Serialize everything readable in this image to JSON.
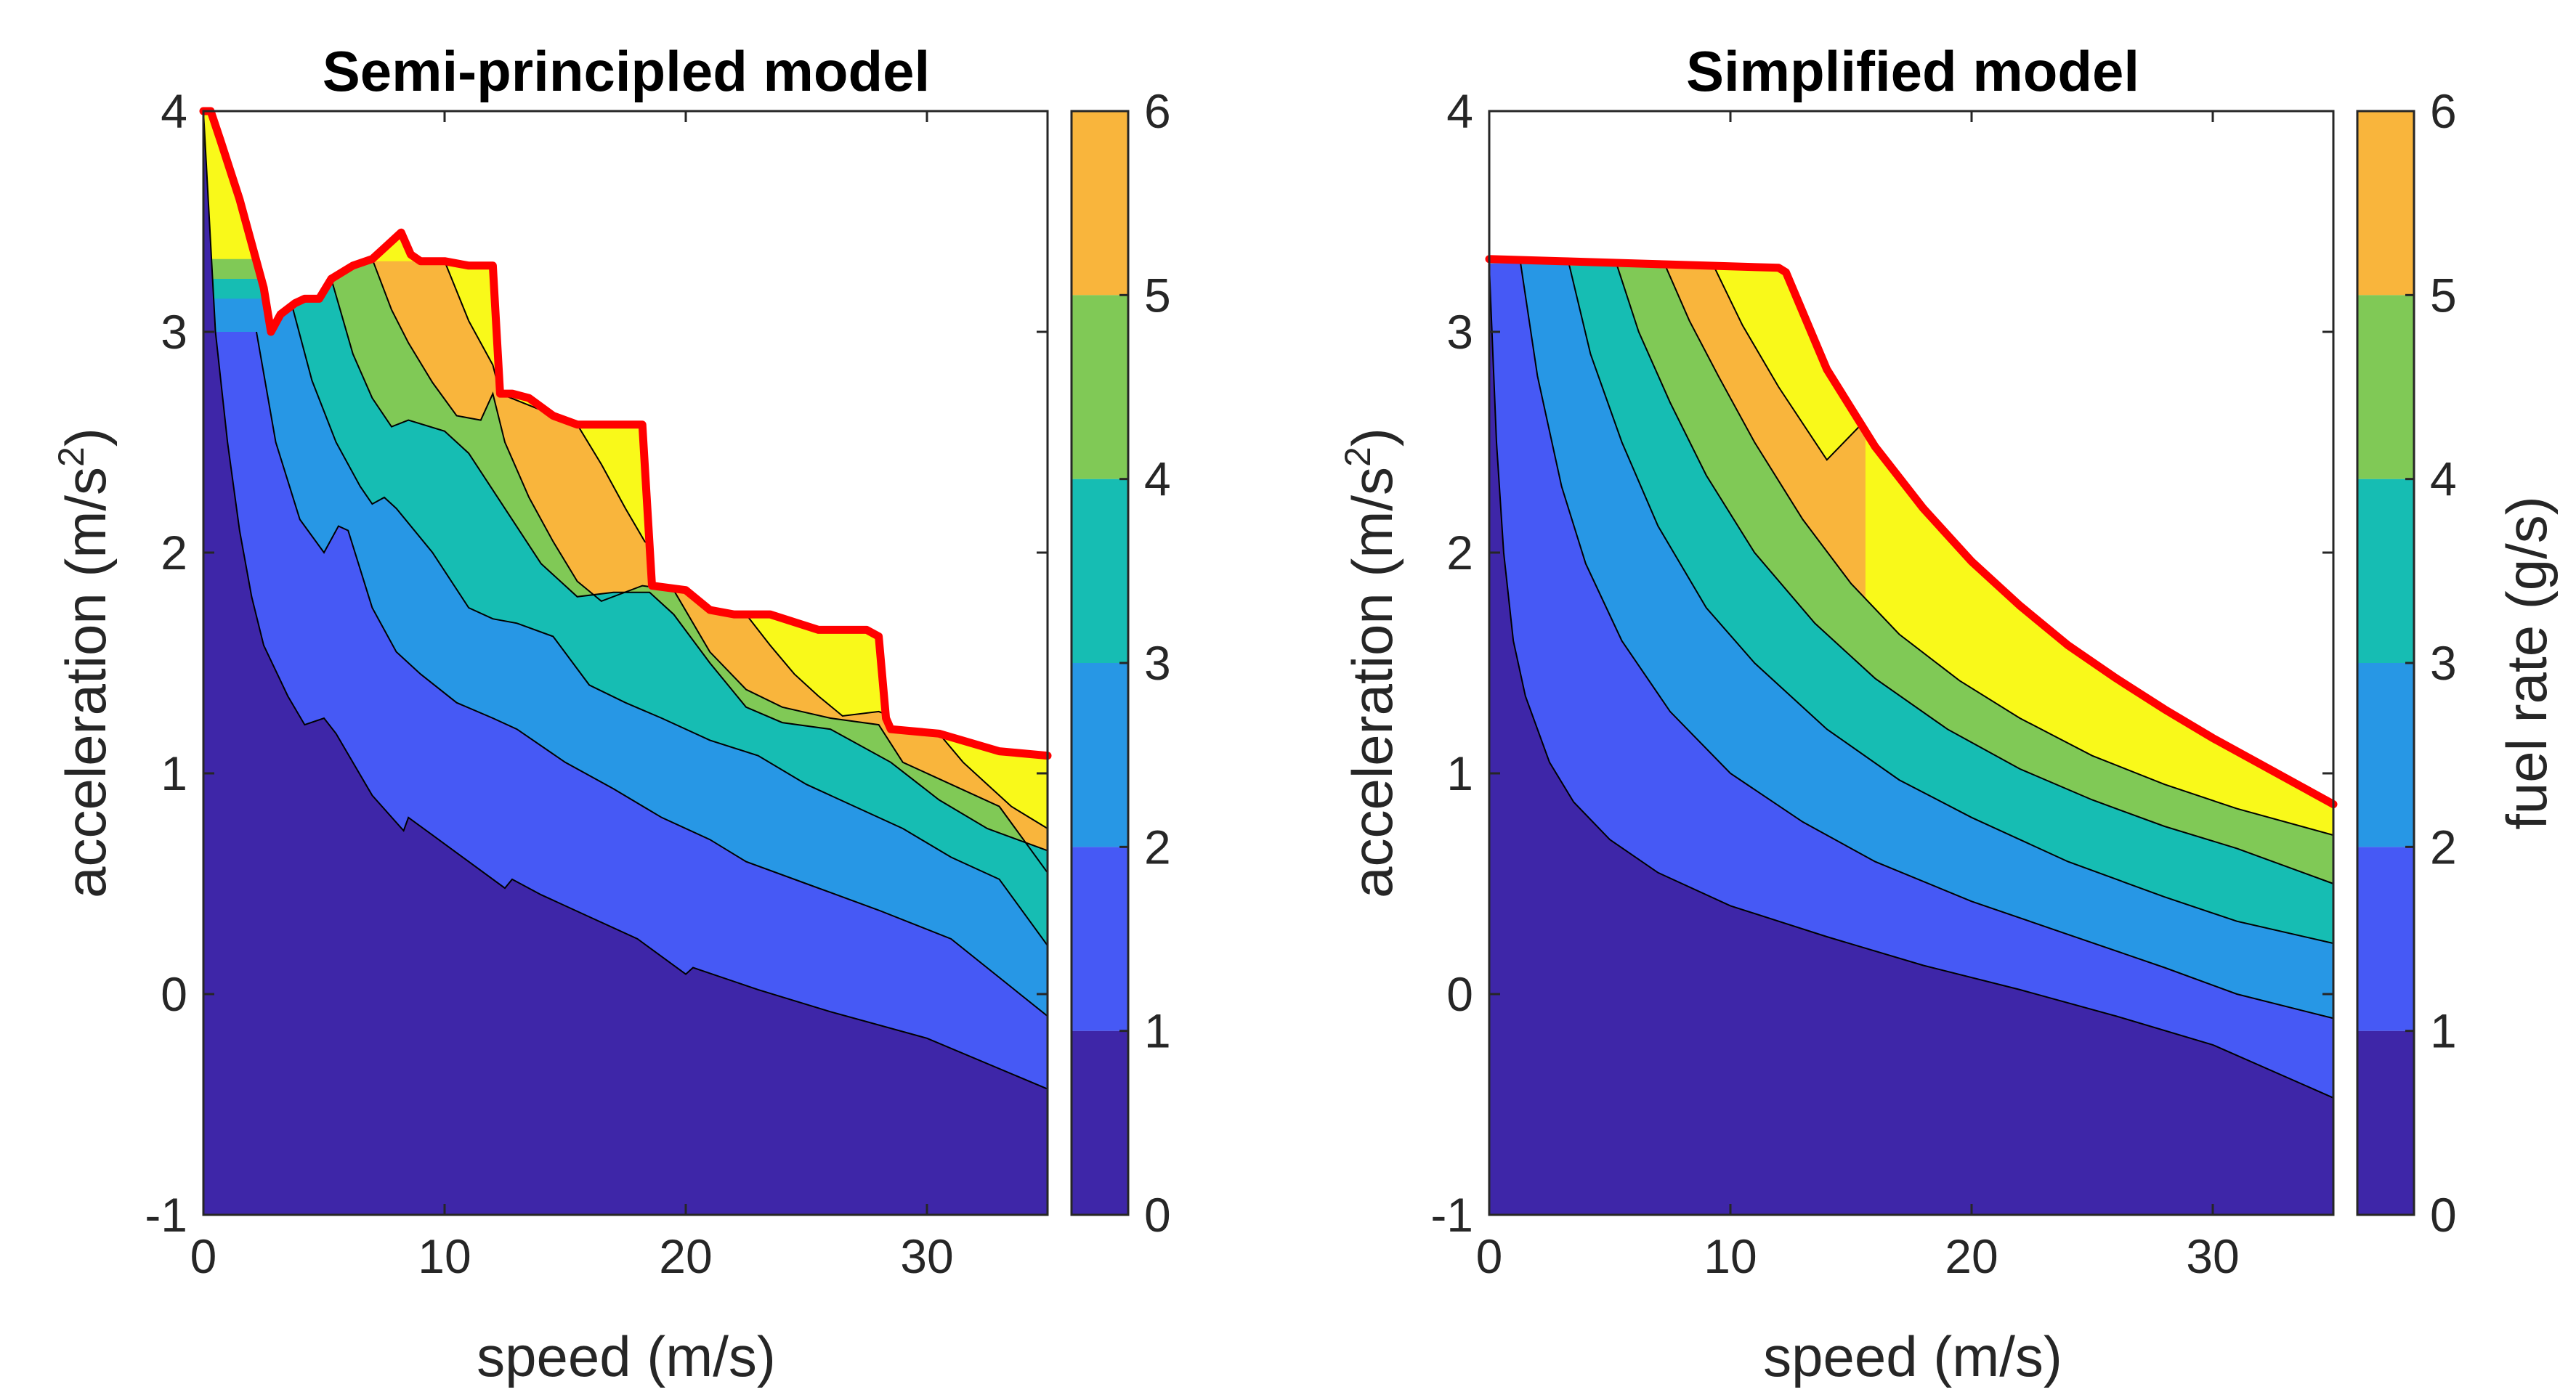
{
  "chart_data": [
    {
      "type": "contourf",
      "title": "Semi-principled model",
      "xlabel": "speed (m/s)",
      "ylabel_main": "acceleration (m/s",
      "ylabel_sup": "2",
      "ylabel_end": ")",
      "xlim": [
        0,
        35
      ],
      "ylim": [
        -1,
        4
      ],
      "xticks": [
        0,
        10,
        20,
        30
      ],
      "yticks": [
        -1,
        0,
        1,
        2,
        3,
        4
      ],
      "colorbar": {
        "range": [
          0,
          6
        ],
        "ticks": [
          0,
          1,
          2,
          3,
          4,
          5,
          6
        ],
        "label": ""
      },
      "levels": [
        0,
        1,
        2,
        3,
        4,
        5,
        6
      ],
      "level_colors": [
        "#3E26A8",
        "#4659F5",
        "#2797E5",
        "#16BDB3",
        "#80C956",
        "#F9B53C",
        "#F9F91A"
      ],
      "max_accel_boundary_color": "#FF0000",
      "max_accel_boundary": [
        [
          0,
          4.0
        ],
        [
          0.3,
          4.0
        ],
        [
          0.7,
          3.87
        ],
        [
          1.5,
          3.6
        ],
        [
          2.5,
          3.2
        ],
        [
          2.8,
          3.0
        ],
        [
          3.2,
          3.08
        ],
        [
          3.8,
          3.13
        ],
        [
          4.2,
          3.15
        ],
        [
          4.8,
          3.15
        ],
        [
          5.3,
          3.24
        ],
        [
          6.2,
          3.3
        ],
        [
          7.0,
          3.33
        ],
        [
          7.5,
          3.38
        ],
        [
          8.2,
          3.45
        ],
        [
          8.6,
          3.35
        ],
        [
          9.0,
          3.32
        ],
        [
          10.0,
          3.32
        ],
        [
          11.0,
          3.3
        ],
        [
          12.0,
          3.3
        ],
        [
          12.3,
          2.72
        ],
        [
          12.8,
          2.72
        ],
        [
          13.5,
          2.7
        ],
        [
          14.5,
          2.62
        ],
        [
          15.5,
          2.58
        ],
        [
          17.0,
          2.58
        ],
        [
          18.2,
          2.58
        ],
        [
          18.6,
          1.85
        ],
        [
          20.0,
          1.83
        ],
        [
          21.0,
          1.74
        ],
        [
          22.0,
          1.72
        ],
        [
          23.5,
          1.72
        ],
        [
          25.5,
          1.65
        ],
        [
          27.5,
          1.65
        ],
        [
          28.0,
          1.62
        ],
        [
          28.3,
          1.25
        ],
        [
          28.5,
          1.2
        ],
        [
          30.5,
          1.18
        ],
        [
          33.0,
          1.1
        ],
        [
          35.0,
          1.08
        ]
      ],
      "contours": [
        {
          "level": 1,
          "points": [
            [
              0,
              4.0
            ],
            [
              0.5,
              3.0
            ],
            [
              1.0,
              2.5
            ],
            [
              1.5,
              2.1
            ],
            [
              2.0,
              1.8
            ],
            [
              2.5,
              1.58
            ],
            [
              3.5,
              1.35
            ],
            [
              4.2,
              1.22
            ],
            [
              5.0,
              1.25
            ],
            [
              5.5,
              1.18
            ],
            [
              7.0,
              0.9
            ],
            [
              8.3,
              0.74
            ],
            [
              8.5,
              0.8
            ],
            [
              9.5,
              0.72
            ],
            [
              11.0,
              0.6
            ],
            [
              12.5,
              0.48
            ],
            [
              12.8,
              0.52
            ],
            [
              14.0,
              0.45
            ],
            [
              16.0,
              0.35
            ],
            [
              18.0,
              0.25
            ],
            [
              20.0,
              0.09
            ],
            [
              20.3,
              0.12
            ],
            [
              23.0,
              0.02
            ],
            [
              26.0,
              -0.08
            ],
            [
              30.0,
              -0.2
            ],
            [
              35.0,
              -0.43
            ]
          ]
        },
        {
          "level": 2,
          "points": [
            [
              2.2,
              3.0
            ],
            [
              3.0,
              2.5
            ],
            [
              4.0,
              2.15
            ],
            [
              5.0,
              2.0
            ],
            [
              5.6,
              2.12
            ],
            [
              6.0,
              2.1
            ],
            [
              7.0,
              1.75
            ],
            [
              8.0,
              1.55
            ],
            [
              9.0,
              1.45
            ],
            [
              10.5,
              1.32
            ],
            [
              12.0,
              1.25
            ],
            [
              13.0,
              1.2
            ],
            [
              15.0,
              1.05
            ],
            [
              17.0,
              0.93
            ],
            [
              19.0,
              0.8
            ],
            [
              21.0,
              0.7
            ],
            [
              22.5,
              0.6
            ],
            [
              25.0,
              0.5
            ],
            [
              28.0,
              0.38
            ],
            [
              31.0,
              0.25
            ],
            [
              35.0,
              -0.1
            ]
          ]
        },
        {
          "level": 3,
          "points": [
            [
              3.6,
              3.15
            ],
            [
              4.5,
              2.78
            ],
            [
              5.5,
              2.5
            ],
            [
              6.5,
              2.3
            ],
            [
              7.0,
              2.22
            ],
            [
              7.5,
              2.25
            ],
            [
              8.0,
              2.2
            ],
            [
              9.5,
              2.0
            ],
            [
              11.0,
              1.75
            ],
            [
              12.0,
              1.7
            ],
            [
              13.0,
              1.68
            ],
            [
              14.5,
              1.62
            ],
            [
              16.0,
              1.4
            ],
            [
              17.5,
              1.32
            ],
            [
              19.0,
              1.25
            ],
            [
              21.0,
              1.15
            ],
            [
              23.0,
              1.08
            ],
            [
              25.0,
              0.95
            ],
            [
              27.0,
              0.85
            ],
            [
              29.0,
              0.75
            ],
            [
              31.0,
              0.62
            ],
            [
              33.0,
              0.52
            ],
            [
              35.0,
              0.22
            ]
          ]
        },
        {
          "level": 4,
          "points": [
            [
              5.3,
              3.24
            ],
            [
              6.2,
              2.9
            ],
            [
              7.0,
              2.7
            ],
            [
              7.8,
              2.57
            ],
            [
              8.5,
              2.6
            ],
            [
              10.0,
              2.55
            ],
            [
              11.0,
              2.45
            ],
            [
              12.5,
              2.2
            ],
            [
              14.0,
              1.95
            ],
            [
              15.5,
              1.8
            ],
            [
              17.0,
              1.82
            ],
            [
              18.5,
              1.82
            ],
            [
              19.5,
              1.72
            ],
            [
              21.0,
              1.5
            ],
            [
              22.5,
              1.3
            ],
            [
              24.0,
              1.23
            ],
            [
              26.0,
              1.2
            ],
            [
              28.5,
              1.05
            ],
            [
              30.5,
              0.88
            ],
            [
              32.5,
              0.75
            ],
            [
              35.0,
              0.65
            ]
          ]
        },
        {
          "level": 5,
          "points": [
            [
              7.0,
              3.33
            ],
            [
              7.8,
              3.1
            ],
            [
              8.5,
              2.95
            ],
            [
              9.5,
              2.77
            ],
            [
              10.5,
              2.62
            ],
            [
              11.5,
              2.6
            ],
            [
              12.0,
              2.72
            ],
            [
              12.5,
              2.5
            ],
            [
              13.5,
              2.25
            ],
            [
              14.5,
              2.05
            ],
            [
              15.5,
              1.87
            ],
            [
              16.5,
              1.78
            ],
            [
              18.2,
              1.85
            ],
            [
              19.5,
              1.83
            ],
            [
              21.0,
              1.55
            ],
            [
              22.5,
              1.38
            ],
            [
              24.0,
              1.3
            ],
            [
              26.0,
              1.25
            ],
            [
              28.0,
              1.22
            ],
            [
              29.0,
              1.05
            ],
            [
              31.0,
              0.95
            ],
            [
              33.0,
              0.85
            ],
            [
              35.0,
              0.55
            ]
          ]
        },
        {
          "level": 6,
          "points": [
            [
              10.0,
              3.32
            ],
            [
              11.0,
              3.05
            ],
            [
              12.0,
              2.85
            ],
            [
              12.3,
              2.72
            ],
            [
              15.5,
              2.58
            ],
            [
              16.5,
              2.4
            ],
            [
              17.5,
              2.2
            ],
            [
              18.3,
              2.05
            ],
            [
              22.5,
              1.72
            ],
            [
              23.5,
              1.58
            ],
            [
              24.5,
              1.45
            ],
            [
              25.5,
              1.35
            ],
            [
              26.5,
              1.26
            ],
            [
              28.0,
              1.28
            ],
            [
              30.5,
              1.18
            ],
            [
              31.5,
              1.05
            ],
            [
              32.5,
              0.95
            ],
            [
              33.5,
              0.85
            ],
            [
              35.0,
              0.75
            ]
          ]
        }
      ]
    },
    {
      "type": "contourf",
      "title": "Simplified model",
      "xlabel": "speed (m/s)",
      "ylabel_main": "acceleration (m/s",
      "ylabel_sup": "2",
      "ylabel_end": ")",
      "xlim": [
        0,
        35
      ],
      "ylim": [
        -1,
        4
      ],
      "xticks": [
        0,
        10,
        20,
        30
      ],
      "yticks": [
        -1,
        0,
        1,
        2,
        3,
        4
      ],
      "colorbar": {
        "range": [
          0,
          6
        ],
        "ticks": [
          0,
          1,
          2,
          3,
          4,
          5,
          6
        ],
        "label": "fuel rate (g/s)"
      },
      "levels": [
        0,
        1,
        2,
        3,
        4,
        5,
        6
      ],
      "level_colors": [
        "#3E26A8",
        "#4659F5",
        "#2797E5",
        "#16BDB3",
        "#80C956",
        "#F9B53C",
        "#F9F91A"
      ],
      "max_accel_boundary_color": "#FF0000",
      "max_accel_boundary": [
        [
          0,
          3.33
        ],
        [
          3,
          3.32
        ],
        [
          6,
          3.31
        ],
        [
          9,
          3.3
        ],
        [
          12,
          3.29
        ],
        [
          12.3,
          3.27
        ],
        [
          14,
          2.83
        ],
        [
          16,
          2.48
        ],
        [
          18,
          2.2
        ],
        [
          20,
          1.96
        ],
        [
          22,
          1.76
        ],
        [
          24,
          1.58
        ],
        [
          26,
          1.43
        ],
        [
          28,
          1.29
        ],
        [
          30,
          1.16
        ],
        [
          32,
          1.04
        ],
        [
          34,
          0.92
        ],
        [
          35,
          0.86
        ]
      ],
      "contours": [
        {
          "level": 1,
          "points": [
            [
              0,
              3.3
            ],
            [
              0.3,
              2.5
            ],
            [
              0.6,
              2.0
            ],
            [
              1.0,
              1.6
            ],
            [
              1.5,
              1.35
            ],
            [
              2.5,
              1.05
            ],
            [
              3.5,
              0.87
            ],
            [
              5.0,
              0.7
            ],
            [
              7.0,
              0.55
            ],
            [
              10.0,
              0.4
            ],
            [
              14.0,
              0.26
            ],
            [
              18.0,
              0.13
            ],
            [
              22.0,
              0.02
            ],
            [
              26.0,
              -0.1
            ],
            [
              30.0,
              -0.23
            ],
            [
              35.0,
              -0.47
            ]
          ]
        },
        {
          "level": 2,
          "points": [
            [
              1.3,
              3.31
            ],
            [
              2.0,
              2.8
            ],
            [
              3.0,
              2.3
            ],
            [
              4.0,
              1.95
            ],
            [
              5.5,
              1.6
            ],
            [
              7.5,
              1.28
            ],
            [
              10.0,
              1.0
            ],
            [
              13.0,
              0.78
            ],
            [
              16.0,
              0.6
            ],
            [
              20.0,
              0.42
            ],
            [
              24.0,
              0.27
            ],
            [
              28.0,
              0.12
            ],
            [
              31.0,
              0.0
            ],
            [
              35.0,
              -0.11
            ]
          ]
        },
        {
          "level": 3,
          "points": [
            [
              3.3,
              3.31
            ],
            [
              4.2,
              2.9
            ],
            [
              5.5,
              2.5
            ],
            [
              7.0,
              2.12
            ],
            [
              9.0,
              1.75
            ],
            [
              11.0,
              1.5
            ],
            [
              14.0,
              1.2
            ],
            [
              17.0,
              0.97
            ],
            [
              20.0,
              0.8
            ],
            [
              24.0,
              0.6
            ],
            [
              28.0,
              0.44
            ],
            [
              31.0,
              0.33
            ],
            [
              35.0,
              0.23
            ]
          ]
        },
        {
          "level": 4,
          "points": [
            [
              5.3,
              3.3
            ],
            [
              6.2,
              3.0
            ],
            [
              7.5,
              2.68
            ],
            [
              9.0,
              2.35
            ],
            [
              11.0,
              2.0
            ],
            [
              13.5,
              1.68
            ],
            [
              16.0,
              1.43
            ],
            [
              19.0,
              1.2
            ],
            [
              22.0,
              1.02
            ],
            [
              25.0,
              0.88
            ],
            [
              28.0,
              0.76
            ],
            [
              31.0,
              0.66
            ],
            [
              35.0,
              0.5
            ]
          ]
        },
        {
          "level": 5,
          "points": [
            [
              7.3,
              3.3
            ],
            [
              8.3,
              3.05
            ],
            [
              9.5,
              2.8
            ],
            [
              11.0,
              2.5
            ],
            [
              13.0,
              2.15
            ],
            [
              15.0,
              1.86
            ],
            [
              17.0,
              1.63
            ],
            [
              19.5,
              1.42
            ],
            [
              22.0,
              1.25
            ],
            [
              25.0,
              1.08
            ],
            [
              28.0,
              0.95
            ],
            [
              31.0,
              0.84
            ],
            [
              35.0,
              0.72
            ]
          ]
        },
        {
          "level": 6,
          "points": [
            [
              9.3,
              3.3
            ],
            [
              10.5,
              3.03
            ],
            [
              12.0,
              2.75
            ],
            [
              14.0,
              2.42
            ],
            [
              15.6,
              2.6
            ]
          ]
        }
      ]
    }
  ]
}
